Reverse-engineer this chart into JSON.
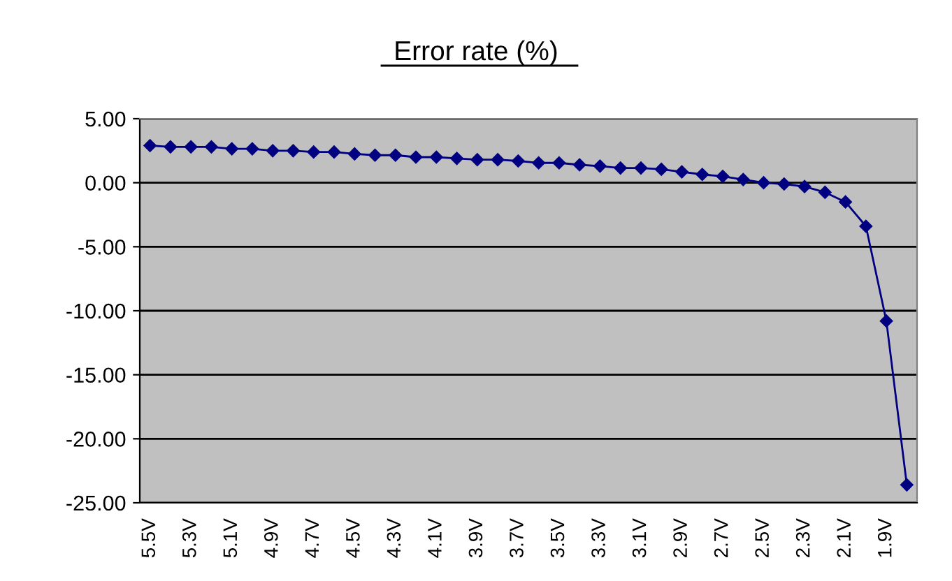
{
  "chart_data": {
    "type": "line",
    "title": "Error rate (%)",
    "categories": [
      "5.5V",
      null,
      "5.3V",
      null,
      "5.1V",
      null,
      "4.9V",
      null,
      "4.7V",
      null,
      "4.5V",
      null,
      "4.3V",
      null,
      "4.1V",
      null,
      "3.9V",
      null,
      "3.7V",
      null,
      "3.5V",
      null,
      "3.3V",
      null,
      "3.1V",
      null,
      "2.9V",
      null,
      "2.7V",
      null,
      "2.5V",
      null,
      "2.3V",
      null,
      "2.1V",
      null,
      "1.9V",
      null
    ],
    "series": [
      {
        "color": "#000080",
        "values": [
          2.9,
          2.8,
          2.8,
          2.8,
          2.65,
          2.65,
          2.5,
          2.5,
          2.4,
          2.4,
          2.25,
          2.15,
          2.15,
          2.0,
          2.0,
          1.9,
          1.8,
          1.8,
          1.7,
          1.55,
          1.55,
          1.4,
          1.3,
          1.15,
          1.15,
          1.05,
          0.85,
          0.65,
          0.5,
          0.25,
          0.0,
          -0.1,
          -0.3,
          -0.75,
          -1.5,
          -3.4,
          -10.8,
          -23.6
        ]
      }
    ],
    "ylim": [
      -25,
      5
    ],
    "yticks": [
      {
        "value": 5,
        "label": "5.00"
      },
      {
        "value": 0,
        "label": "0.00"
      },
      {
        "value": -5,
        "label": "-5.00"
      },
      {
        "value": -10,
        "label": "-10.00"
      },
      {
        "value": -15,
        "label": "-15.00"
      },
      {
        "value": -20,
        "label": "-20.00"
      },
      {
        "value": -25,
        "label": "-25.00"
      }
    ],
    "grid": "y",
    "marker": "diamond",
    "line_style": "solid"
  }
}
